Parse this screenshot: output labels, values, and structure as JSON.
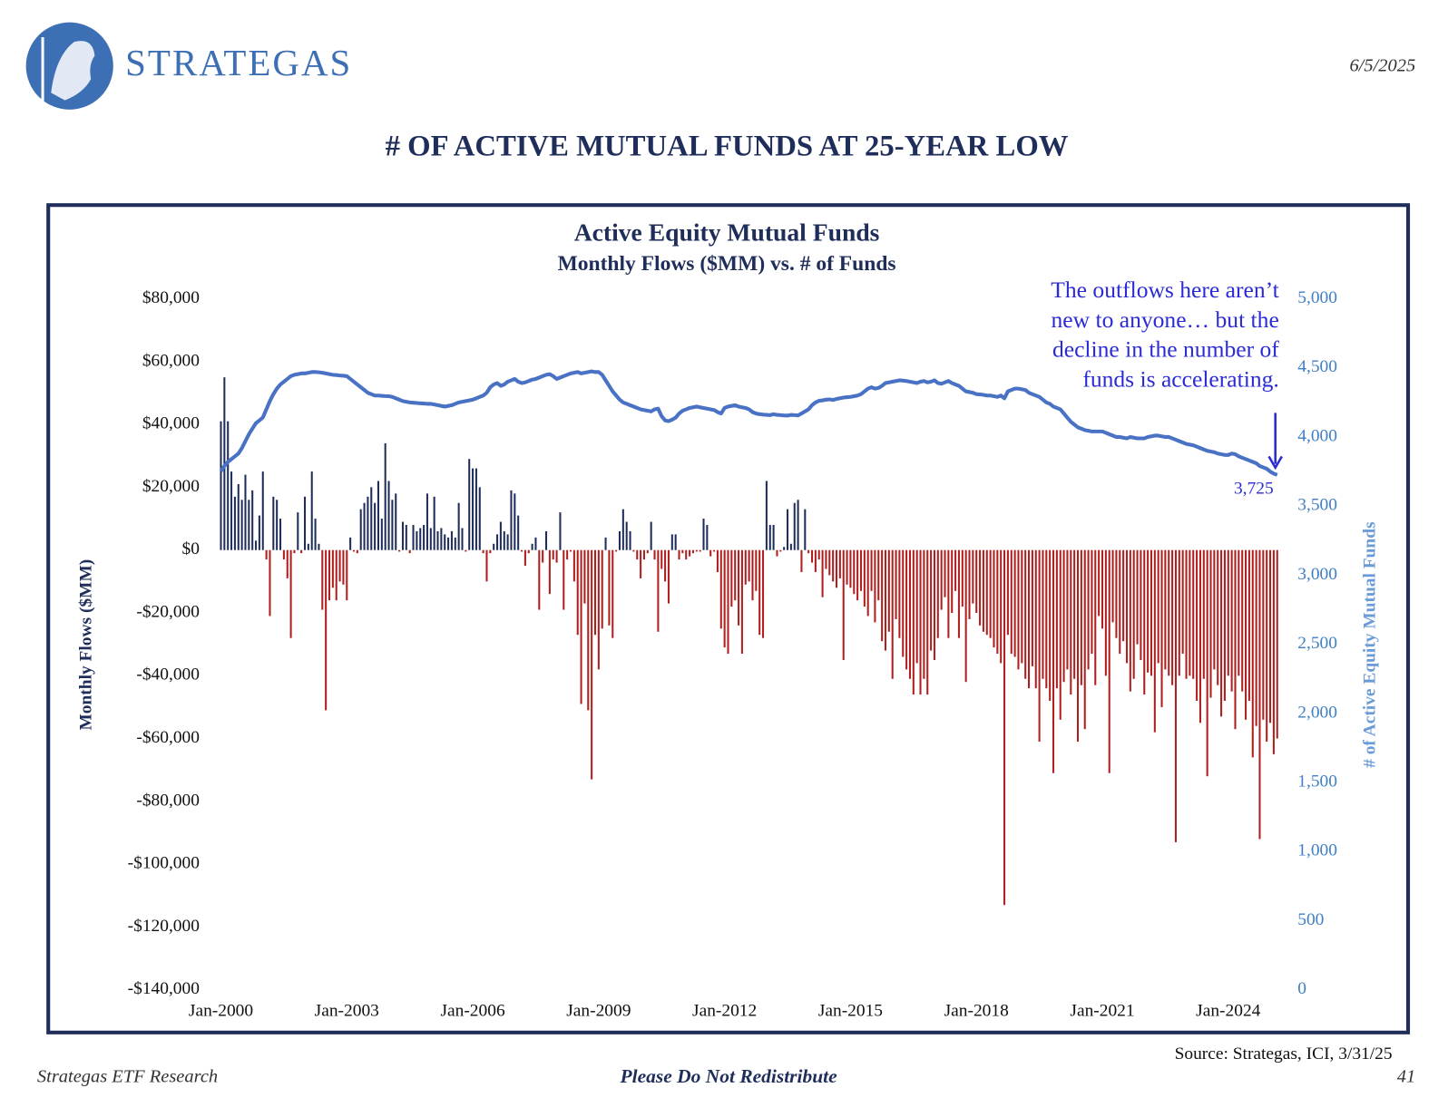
{
  "header": {
    "brand": "STRATEGAS",
    "date": "6/5/2025",
    "title": "# OF ACTIVE MUTUAL FUNDS AT 25-YEAR LOW"
  },
  "chart_data": {
    "type": "bar-line",
    "title": "Active Equity Mutual Funds",
    "subtitle": "Monthly Flows ($MM) vs. # of Funds",
    "y_label": "Monthly Flows ($MM)",
    "y2_label": "# of Active Equity Mutual Funds",
    "annotation": [
      "The outflows here aren’t",
      "new to anyone… but the",
      "decline in the number of",
      "funds is accelerating."
    ],
    "end_label": "3,725",
    "categories": [
      "Jan-2000",
      null,
      null,
      null,
      null,
      null,
      null,
      null,
      null,
      null,
      null,
      null,
      null,
      null,
      null,
      null,
      null,
      null,
      null,
      null,
      null,
      null,
      null,
      null,
      null,
      null,
      null,
      null,
      null,
      null,
      null,
      null,
      null,
      null,
      null,
      null,
      "Jan-2003",
      null,
      null,
      null,
      null,
      null,
      null,
      null,
      null,
      null,
      null,
      null,
      null,
      null,
      null,
      null,
      null,
      null,
      null,
      null,
      null,
      null,
      null,
      null,
      null,
      null,
      null,
      null,
      null,
      null,
      null,
      null,
      null,
      null,
      null,
      null,
      "Jan-2006",
      null,
      null,
      null,
      null,
      null,
      null,
      null,
      null,
      null,
      null,
      null,
      null,
      null,
      null,
      null,
      null,
      null,
      null,
      null,
      null,
      null,
      null,
      null,
      null,
      null,
      null,
      null,
      null,
      null,
      null,
      null,
      null,
      null,
      null,
      null,
      "Jan-2009",
      null,
      null,
      null,
      null,
      null,
      null,
      null,
      null,
      null,
      null,
      null,
      null,
      null,
      null,
      null,
      null,
      null,
      null,
      null,
      null,
      null,
      null,
      null,
      null,
      null,
      null,
      null,
      null,
      null,
      null,
      null,
      null,
      null,
      null,
      null,
      "Jan-2012",
      null,
      null,
      null,
      null,
      null,
      null,
      null,
      null,
      null,
      null,
      null,
      null,
      null,
      null,
      null,
      null,
      null,
      null,
      null,
      null,
      null,
      null,
      null,
      null,
      null,
      null,
      null,
      null,
      null,
      null,
      null,
      null,
      null,
      null,
      null,
      "Jan-2015",
      null,
      null,
      null,
      null,
      null,
      null,
      null,
      null,
      null,
      null,
      null,
      null,
      null,
      null,
      null,
      null,
      null,
      null,
      null,
      null,
      null,
      null,
      null,
      null,
      null,
      null,
      null,
      null,
      null,
      null,
      null,
      null,
      null,
      null,
      null,
      "Jan-2018",
      null,
      null,
      null,
      null,
      null,
      null,
      null,
      null,
      null,
      null,
      null,
      null,
      null,
      null,
      null,
      null,
      null,
      null,
      null,
      null,
      null,
      null,
      null,
      null,
      null,
      null,
      null,
      null,
      null,
      null,
      null,
      null,
      null,
      null,
      null,
      "Jan-2021",
      null,
      null,
      null,
      null,
      null,
      null,
      null,
      null,
      null,
      null,
      null,
      null,
      null,
      null,
      null,
      null,
      null,
      null,
      null,
      null,
      null,
      null,
      null,
      null,
      null,
      null,
      null,
      null,
      null,
      null,
      null,
      null,
      null,
      null,
      null,
      "Jan-2024",
      null,
      null,
      null,
      null,
      null,
      null,
      null,
      null,
      null,
      null,
      null,
      null,
      null,
      null
    ],
    "series": [
      {
        "type": "bar",
        "color": "#1f2d5a",
        "negative_color": "#b01e1e",
        "values": [
          41000,
          55000,
          41000,
          25000,
          17000,
          21000,
          16000,
          24000,
          16000,
          19000,
          3000,
          11000,
          25000,
          -3000,
          -21000,
          17000,
          16000,
          10000,
          -3000,
          -9000,
          -28000,
          -1000,
          12000,
          -1000,
          17000,
          2000,
          25000,
          10000,
          2000,
          -19000,
          -51000,
          -16000,
          -12000,
          -16000,
          -10000,
          -11000,
          -16000,
          4000,
          -500,
          -1000,
          13000,
          15000,
          17000,
          20000,
          15000,
          22000,
          10000,
          34000,
          22000,
          16000,
          18000,
          -500,
          9000,
          8000,
          -1000,
          8000,
          6000,
          7000,
          8000,
          18000,
          7000,
          17000,
          6000,
          7000,
          5000,
          4000,
          6000,
          4000,
          15000,
          7000,
          -500,
          29000,
          26000,
          26000,
          20000,
          -1000,
          -10000,
          -1000,
          2000,
          5000,
          9000,
          6000,
          5000,
          19000,
          18000,
          11000,
          -500,
          -5000,
          -1000,
          2000,
          4000,
          -19000,
          -4000,
          6000,
          -14000,
          -3000,
          -4000,
          12000,
          -19000,
          -3000,
          -500,
          -10000,
          -27000,
          -49000,
          -17000,
          -51000,
          -73000,
          -27000,
          -38000,
          -25000,
          4000,
          -24000,
          -28000,
          -500,
          6000,
          13000,
          9000,
          6000,
          -500,
          -3000,
          -9000,
          -3000,
          -1000,
          9000,
          -3000,
          -26000,
          -6000,
          -10000,
          -17000,
          5000,
          5000,
          -3000,
          -1000,
          -3000,
          -2000,
          -1000,
          -500,
          -500,
          10000,
          8000,
          -2000,
          -500,
          -7000,
          -25000,
          -31000,
          -33000,
          -18000,
          -16000,
          -24000,
          -33000,
          -11000,
          -10000,
          -16000,
          -13000,
          -27000,
          -28000,
          22000,
          8000,
          8000,
          -2000,
          -500,
          1000,
          13000,
          2000,
          15000,
          16000,
          -7000,
          13000,
          -1000,
          -4000,
          -7000,
          -3000,
          -15000,
          -6000,
          -8000,
          -10000,
          -12000,
          -9000,
          -35000,
          -11000,
          -12000,
          -14000,
          -16000,
          -13000,
          -18000,
          -21000,
          -13000,
          -23000,
          -16000,
          -29000,
          -32000,
          -26000,
          -41000,
          -22000,
          -28000,
          -34000,
          -38000,
          -41000,
          -46000,
          -36000,
          -46000,
          -41000,
          -46000,
          -32000,
          -35000,
          -28000,
          -19000,
          -15000,
          -28000,
          -20000,
          -13000,
          -28000,
          -18000,
          -42000,
          -22000,
          -17000,
          -20000,
          -24000,
          -26000,
          -27000,
          -28000,
          -31000,
          -33000,
          -36000,
          -113000,
          -27000,
          -33000,
          -34000,
          -38000,
          -36000,
          -41000,
          -44000,
          -37000,
          -44000,
          -61000,
          -41000,
          -44000,
          -48000,
          -71000,
          -44000,
          -54000,
          -42000,
          -38000,
          -46000,
          -41000,
          -61000,
          -43000,
          -57000,
          -38000,
          -33000,
          -43000,
          -21000,
          -25000,
          -40000,
          -71000,
          -23000,
          -28000,
          -33000,
          -29000,
          -36000,
          -45000,
          -41000,
          -30000,
          -35000,
          -46000,
          -39000,
          -40000,
          -58000,
          -36000,
          -50000,
          -38000,
          -40000,
          -43000,
          -93000,
          -40000,
          -33000,
          -41000,
          -40000,
          -41000,
          -48000,
          -55000,
          -41000,
          -72000,
          -47000,
          -38000,
          -43000,
          -53000,
          -48000,
          -40000,
          -45000,
          -57000,
          -40000,
          -45000,
          -54000,
          -48000,
          -66000,
          -56000,
          -92000,
          -54000,
          -61000,
          -55000,
          -65000,
          -60000
        ]
      },
      {
        "type": "line",
        "axis": "y2",
        "color": "#4a72c4",
        "values": [
          3752,
          3790,
          3820,
          3840,
          3860,
          3880,
          3920,
          3970,
          4020,
          4060,
          4100,
          4120,
          4141,
          4200,
          4260,
          4310,
          4350,
          4380,
          4400,
          4420,
          4440,
          4450,
          4455,
          4460,
          4460,
          4465,
          4470,
          4470,
          4468,
          4465,
          4460,
          4455,
          4450,
          4448,
          4445,
          4443,
          4440,
          4420,
          4400,
          4380,
          4360,
          4340,
          4320,
          4310,
          4300,
          4300,
          4298,
          4296,
          4295,
          4290,
          4280,
          4270,
          4260,
          4255,
          4250,
          4248,
          4246,
          4244,
          4242,
          4240,
          4240,
          4235,
          4230,
          4225,
          4220,
          4225,
          4230,
          4240,
          4250,
          4255,
          4260,
          4265,
          4270,
          4280,
          4290,
          4300,
          4320,
          4360,
          4380,
          4390,
          4370,
          4380,
          4400,
          4410,
          4420,
          4400,
          4390,
          4395,
          4405,
          4415,
          4420,
          4430,
          4440,
          4450,
          4455,
          4440,
          4420,
          4430,
          4440,
          4450,
          4460,
          4465,
          4470,
          4460,
          4465,
          4470,
          4475,
          4470,
          4470,
          4450,
          4410,
          4370,
          4330,
          4300,
          4270,
          4250,
          4240,
          4230,
          4220,
          4210,
          4200,
          4195,
          4190,
          4185,
          4200,
          4205,
          4150,
          4120,
          4115,
          4125,
          4140,
          4170,
          4190,
          4200,
          4210,
          4215,
          4220,
          4215,
          4210,
          4205,
          4200,
          4195,
          4180,
          4170,
          4210,
          4220,
          4225,
          4230,
          4220,
          4215,
          4210,
          4200,
          4180,
          4170,
          4165,
          4162,
          4160,
          4158,
          4165,
          4160,
          4158,
          4156,
          4155,
          4160,
          4158,
          4156,
          4170,
          4185,
          4200,
          4230,
          4250,
          4262,
          4265,
          4270,
          4272,
          4268,
          4275,
          4280,
          4285,
          4288,
          4290,
          4295,
          4300,
          4310,
          4330,
          4350,
          4360,
          4350,
          4355,
          4370,
          4390,
          4395,
          4400,
          4405,
          4410,
          4408,
          4405,
          4400,
          4395,
          4390,
          4400,
          4405,
          4395,
          4400,
          4410,
          4390,
          4385,
          4395,
          4405,
          4390,
          4380,
          4370,
          4350,
          4330,
          4325,
          4320,
          4310,
          4308,
          4305,
          4300,
          4300,
          4295,
          4290,
          4300,
          4280,
          4330,
          4340,
          4350,
          4350,
          4345,
          4340,
          4320,
          4310,
          4300,
          4290,
          4270,
          4250,
          4240,
          4220,
          4210,
          4200,
          4170,
          4140,
          4110,
          4090,
          4070,
          4060,
          4050,
          4045,
          4040,
          4040,
          4040,
          4040,
          4030,
          4020,
          4010,
          4000,
          4000,
          3995,
          3990,
          4000,
          3995,
          3990,
          3990,
          3990,
          4000,
          4005,
          4010,
          4010,
          4005,
          4000,
          4000,
          3990,
          3980,
          3970,
          3960,
          3950,
          3945,
          3940,
          3930,
          3920,
          3910,
          3900,
          3895,
          3890,
          3880,
          3875,
          3870,
          3870,
          3880,
          3875,
          3860,
          3850,
          3840,
          3830,
          3820,
          3810,
          3790,
          3780,
          3770,
          3750,
          3735,
          3725
        ]
      }
    ],
    "ylim": [
      -140000,
      80000
    ],
    "yticks": [
      {
        "value": -140000,
        "label": "-$140,000"
      },
      {
        "value": -120000,
        "label": "-$120,000"
      },
      {
        "value": -100000,
        "label": "-$100,000"
      },
      {
        "value": -80000,
        "label": "-$80,000"
      },
      {
        "value": -60000,
        "label": "-$60,000"
      },
      {
        "value": -40000,
        "label": "-$40,000"
      },
      {
        "value": -20000,
        "label": "-$20,000"
      },
      {
        "value": 0,
        "label": "$0"
      },
      {
        "value": 20000,
        "label": "$20,000"
      },
      {
        "value": 40000,
        "label": "$40,000"
      },
      {
        "value": 60000,
        "label": "$60,000"
      },
      {
        "value": 80000,
        "label": "$80,000"
      }
    ],
    "y2lim": [
      0,
      5000
    ],
    "y2ticks": [
      0,
      500,
      {
        "value": 1000,
        "label": "1,000"
      },
      {
        "value": 1500,
        "label": "1,500"
      },
      {
        "value": 2000,
        "label": "2,000"
      },
      {
        "value": 2500,
        "label": "2,500"
      },
      {
        "value": 3000,
        "label": "3,000"
      },
      {
        "value": 3500,
        "label": "3,500"
      },
      {
        "value": 4000,
        "label": "4,000"
      },
      {
        "value": 4500,
        "label": "4,500"
      },
      {
        "value": 5000,
        "label": "5,000"
      }
    ],
    "grid": false
  },
  "footer": {
    "source": "Source: Strategas, ICI, 3/31/25",
    "left": "Strategas ETF Research",
    "center": "Please Do Not Redistribute",
    "page": "41"
  }
}
